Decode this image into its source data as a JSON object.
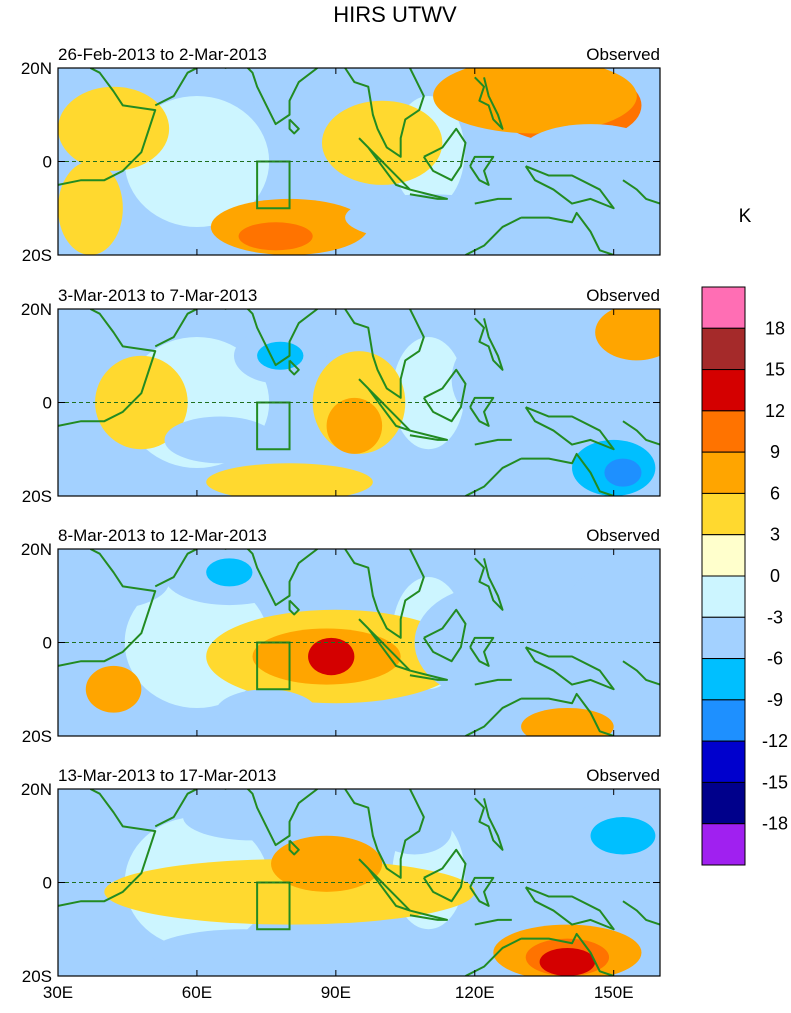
{
  "title": "HIRS UTWV",
  "units": "K",
  "colorbar": {
    "levels": [
      18,
      15,
      12,
      9,
      6,
      3,
      0,
      -3,
      -6,
      -9,
      -12,
      -15,
      -18
    ],
    "colors": [
      "#ff6eb4",
      "#a52a2a",
      "#d40000",
      "#ff7300",
      "#ffa500",
      "#ffd92f",
      "#ffffcc",
      "#ccf5ff",
      "#a3d1ff",
      "#00bfff",
      "#1e90ff",
      "#0000cd",
      "#00008b",
      "#a020f0"
    ]
  },
  "x_axis": {
    "ticks": [
      "30E",
      "60E",
      "90E",
      "120E",
      "150E"
    ],
    "lon_values": [
      30,
      60,
      90,
      120,
      150
    ],
    "range": [
      30,
      160
    ]
  },
  "y_axis": {
    "ticks": [
      "20N",
      "0",
      "20S"
    ],
    "lat_values": [
      20,
      0,
      -20
    ],
    "range": [
      -20,
      20
    ]
  },
  "land_color": "#228b22",
  "panels": [
    {
      "left_label": "26-Feb-2013 to 2-Mar-2013",
      "right_label": "Observed",
      "blobs": [
        {
          "lon": 140,
          "lat": 12,
          "rx": 16,
          "ry": 8,
          "level": 9
        },
        {
          "lon": 133,
          "lat": 14,
          "rx": 22,
          "ry": 8,
          "level": 6
        },
        {
          "lon": 100,
          "lat": 4,
          "rx": 13,
          "ry": 9,
          "level": 3
        },
        {
          "lon": 42,
          "lat": 7,
          "rx": 12,
          "ry": 9,
          "level": 3
        },
        {
          "lon": 80,
          "lat": -14,
          "rx": 17,
          "ry": 6,
          "level": 6
        },
        {
          "lon": 77,
          "lat": -16,
          "rx": 8,
          "ry": 3,
          "level": 9
        },
        {
          "lon": 37,
          "lat": -10,
          "rx": 7,
          "ry": 10,
          "level": 3
        },
        {
          "lon": 82,
          "lat": 14,
          "rx": 10,
          "ry": 6,
          "level": -3
        },
        {
          "lon": 110,
          "lat": -12,
          "rx": 18,
          "ry": 5,
          "level": -3
        },
        {
          "lon": 150,
          "lat": -12,
          "rx": 10,
          "ry": 6,
          "level": -3
        },
        {
          "lon": 145,
          "lat": 2,
          "rx": 15,
          "ry": 6,
          "level": -3
        }
      ]
    },
    {
      "left_label": "3-Mar-2013 to 7-Mar-2013",
      "right_label": "Observed",
      "blobs": [
        {
          "lon": 95,
          "lat": 0,
          "rx": 10,
          "ry": 11,
          "level": 3
        },
        {
          "lon": 94,
          "lat": -5,
          "rx": 6,
          "ry": 6,
          "level": 6
        },
        {
          "lon": 155,
          "lat": 15,
          "rx": 9,
          "ry": 6,
          "level": 6
        },
        {
          "lon": 48,
          "lat": 0,
          "rx": 10,
          "ry": 10,
          "level": 3
        },
        {
          "lon": 80,
          "lat": -17,
          "rx": 18,
          "ry": 4,
          "level": 3
        },
        {
          "lon": 78,
          "lat": 10,
          "rx": 10,
          "ry": 6,
          "level": -3
        },
        {
          "lon": 78,
          "lat": 10,
          "rx": 5,
          "ry": 3,
          "level": -6
        },
        {
          "lon": 130,
          "lat": 5,
          "rx": 15,
          "ry": 12,
          "level": -3
        },
        {
          "lon": 150,
          "lat": -14,
          "rx": 9,
          "ry": 6,
          "level": -6
        },
        {
          "lon": 152,
          "lat": -15,
          "rx": 4,
          "ry": 3,
          "level": -9
        },
        {
          "lon": 65,
          "lat": -8,
          "rx": 12,
          "ry": 5,
          "level": -3
        }
      ]
    },
    {
      "left_label": "8-Mar-2013 to 12-Mar-2013",
      "right_label": "Observed",
      "blobs": [
        {
          "lon": 90,
          "lat": -3,
          "rx": 28,
          "ry": 10,
          "level": 3
        },
        {
          "lon": 88,
          "lat": -3,
          "rx": 16,
          "ry": 6,
          "level": 6
        },
        {
          "lon": 89,
          "lat": -3,
          "rx": 5,
          "ry": 4,
          "level": 12
        },
        {
          "lon": 140,
          "lat": -18,
          "rx": 10,
          "ry": 4,
          "level": 6
        },
        {
          "lon": 42,
          "lat": -10,
          "rx": 6,
          "ry": 5,
          "level": 6
        },
        {
          "lon": 40,
          "lat": 13,
          "rx": 14,
          "ry": 6,
          "level": -3
        },
        {
          "lon": 67,
          "lat": 14,
          "rx": 14,
          "ry": 6,
          "level": -3
        },
        {
          "lon": 67,
          "lat": 15,
          "rx": 5,
          "ry": 3,
          "level": -6
        },
        {
          "lon": 75,
          "lat": -15,
          "rx": 11,
          "ry": 5,
          "level": -3
        },
        {
          "lon": 123,
          "lat": 0,
          "rx": 16,
          "ry": 12,
          "level": -3
        },
        {
          "lon": 150,
          "lat": 8,
          "rx": 10,
          "ry": 8,
          "level": -3
        }
      ]
    },
    {
      "left_label": "13-Mar-2013 to 17-Mar-2013",
      "right_label": "Observed",
      "blobs": [
        {
          "lon": 80,
          "lat": -2,
          "rx": 40,
          "ry": 7,
          "level": 3
        },
        {
          "lon": 88,
          "lat": 4,
          "rx": 12,
          "ry": 6,
          "level": 6
        },
        {
          "lon": 140,
          "lat": -15,
          "rx": 16,
          "ry": 6,
          "level": 6
        },
        {
          "lon": 140,
          "lat": -16,
          "rx": 9,
          "ry": 4,
          "level": 9
        },
        {
          "lon": 140,
          "lat": -17,
          "rx": 6,
          "ry": 3,
          "level": 12
        },
        {
          "lon": 150,
          "lat": 10,
          "rx": 12,
          "ry": 7,
          "level": -3
        },
        {
          "lon": 152,
          "lat": 10,
          "rx": 7,
          "ry": 4,
          "level": -6
        },
        {
          "lon": 72,
          "lat": 14,
          "rx": 15,
          "ry": 5,
          "level": -3
        },
        {
          "lon": 70,
          "lat": -15,
          "rx": 20,
          "ry": 5,
          "level": -3
        },
        {
          "lon": 107,
          "lat": 11,
          "rx": 8,
          "ry": 5,
          "level": -3
        }
      ]
    }
  ]
}
